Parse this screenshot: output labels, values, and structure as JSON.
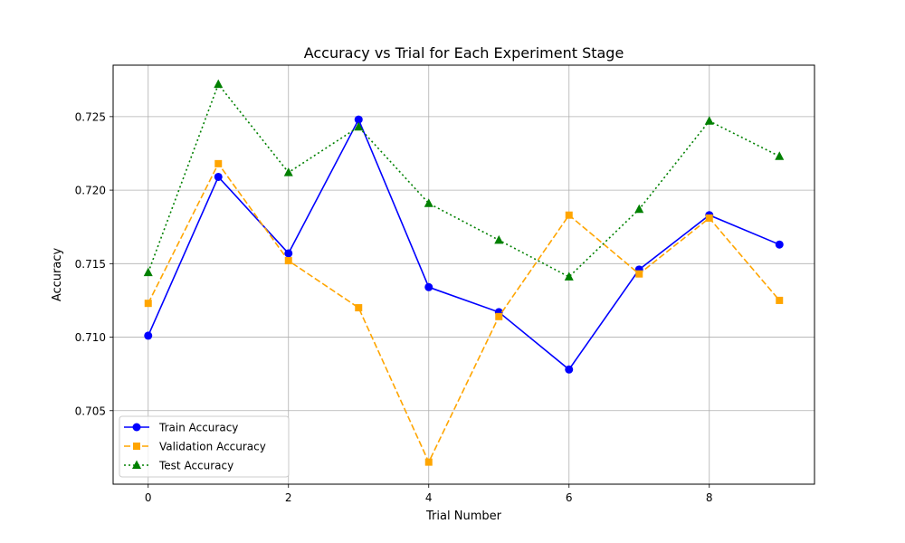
{
  "chart_data": {
    "type": "line",
    "title": "Accuracy vs Trial for Each Experiment Stage",
    "xlabel": "Trial Number",
    "ylabel": "Accuracy",
    "xlim": [
      -0.5,
      9.5
    ],
    "ylim": [
      0.7,
      0.7285
    ],
    "xticks": [
      0,
      2,
      4,
      6,
      8
    ],
    "yticks": [
      0.705,
      0.71,
      0.715,
      0.72,
      0.725
    ],
    "xtick_labels": [
      "0",
      "2",
      "4",
      "6",
      "8"
    ],
    "ytick_labels": [
      "0.705",
      "0.710",
      "0.715",
      "0.720",
      "0.725"
    ],
    "grid": true,
    "legend_position": "lower-left",
    "x": [
      0,
      1,
      2,
      3,
      4,
      5,
      6,
      7,
      8,
      9
    ],
    "series": [
      {
        "name": "Train Accuracy",
        "color": "#0000ff",
        "line_style": "solid",
        "marker": "circle",
        "values": [
          0.7101,
          0.7209,
          0.7157,
          0.7248,
          0.7134,
          0.7117,
          0.7078,
          0.7146,
          0.7183,
          0.7163
        ]
      },
      {
        "name": "Validation Accuracy",
        "color": "#ffa500",
        "line_style": "dashed",
        "marker": "square",
        "values": [
          0.7123,
          0.7218,
          0.7152,
          0.712,
          0.7015,
          0.7114,
          0.7183,
          0.7143,
          0.7181,
          0.7125
        ]
      },
      {
        "name": "Test Accuracy",
        "color": "#008000",
        "line_style": "dotted",
        "marker": "triangle",
        "values": [
          0.7144,
          0.7272,
          0.7212,
          0.7243,
          0.7191,
          0.7166,
          0.7141,
          0.7187,
          0.7247,
          0.7223
        ]
      }
    ]
  }
}
